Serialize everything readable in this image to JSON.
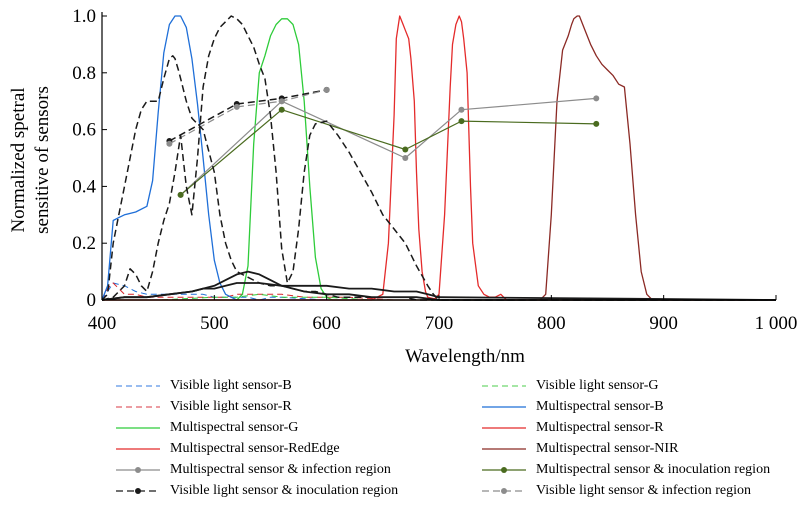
{
  "chart_data": {
    "type": "line",
    "title": "",
    "xlabel": "Wavelength/nm",
    "ylabel_lines": [
      "Normalized spetral",
      "sensitive of sensors"
    ],
    "xlim": [
      400,
      1000
    ],
    "ylim": [
      0,
      1.0
    ],
    "xticks": [
      400,
      500,
      600,
      700,
      800,
      900,
      1000
    ],
    "xtick_labels": [
      "400",
      "500",
      "600",
      "700",
      "800",
      "900",
      "1 000"
    ],
    "yticks": [
      0,
      0.2,
      0.4,
      0.6,
      0.8,
      1.0
    ],
    "ytick_labels": [
      "0",
      "0.2",
      "0.4",
      "0.6",
      "0.8",
      "1.0"
    ],
    "grid": false,
    "legend_position": "bottom",
    "series": [
      {
        "name": "Visible light sensor-B",
        "color": "#1f6fd8",
        "dash": "6,4",
        "width": 1,
        "marker": false,
        "x": [
          400,
          410,
          420,
          430,
          440,
          450,
          460,
          470,
          480,
          490,
          500,
          510,
          520,
          530,
          540,
          550,
          560,
          600,
          700,
          1000
        ],
        "y": [
          0,
          0.06,
          0.05,
          0.03,
          0.02,
          0.02,
          0.02,
          0.02,
          0.02,
          0.02,
          0.01,
          0.01,
          0.01,
          0.01,
          0.0,
          0.01,
          0.01,
          0.0,
          0.0,
          0.0
        ]
      },
      {
        "name": "Visible light sensor-R",
        "color": "#d8252b",
        "dash": "6,4",
        "width": 1,
        "marker": false,
        "x": [
          400,
          405,
          410,
          415,
          420,
          430,
          440,
          460,
          480,
          500,
          510,
          520,
          540,
          560,
          580,
          600,
          620,
          660,
          700,
          1000
        ],
        "y": [
          0,
          0.04,
          0.06,
          0.04,
          0.02,
          0.02,
          0.01,
          0.01,
          0.01,
          0.01,
          0.01,
          0.02,
          0.02,
          0.02,
          0.01,
          0.01,
          0.01,
          0.0,
          0.0,
          0.0
        ]
      },
      {
        "name": "Visible light sensor-G",
        "color": "#2ecc3a",
        "dash": "6,4",
        "width": 1,
        "marker": false,
        "x": [
          400,
          450,
          500,
          520,
          540,
          560,
          580,
          600,
          640,
          700,
          1000
        ],
        "y": [
          0,
          0.0,
          0.01,
          0.01,
          0.02,
          0.01,
          0.01,
          0.01,
          0.0,
          0.0,
          0.0
        ]
      },
      {
        "name": "Multispectral sensor-B",
        "color": "#1f6fd8",
        "dash": "",
        "width": 1.3,
        "marker": false,
        "x": [
          400,
          405,
          410,
          415,
          420,
          430,
          440,
          445,
          450,
          455,
          460,
          465,
          470,
          475,
          480,
          485,
          490,
          495,
          500,
          505,
          510,
          515,
          520,
          530,
          540,
          560,
          1000
        ],
        "y": [
          0,
          0.05,
          0.28,
          0.29,
          0.3,
          0.31,
          0.33,
          0.42,
          0.66,
          0.87,
          0.97,
          1.0,
          1.0,
          0.96,
          0.85,
          0.69,
          0.5,
          0.3,
          0.14,
          0.06,
          0.02,
          0.01,
          0.0,
          0.0,
          0.0,
          0.0,
          0.0
        ]
      },
      {
        "name": "Multispectral sensor-G",
        "color": "#2ecc3a",
        "dash": "",
        "width": 1.3,
        "marker": false,
        "x": [
          400,
          520,
          525,
          530,
          535,
          540,
          545,
          550,
          555,
          560,
          565,
          570,
          575,
          580,
          585,
          590,
          595,
          600,
          605,
          1000
        ],
        "y": [
          0,
          0,
          0.02,
          0.12,
          0.55,
          0.8,
          0.86,
          0.93,
          0.97,
          0.99,
          0.99,
          0.97,
          0.9,
          0.7,
          0.4,
          0.15,
          0.04,
          0.01,
          0.0,
          0.0
        ]
      },
      {
        "name": "Multispectral sensor-R",
        "color": "#e42b2b",
        "dash": "",
        "width": 1.3,
        "marker": false,
        "x": [
          400,
          695,
          700,
          705,
          710,
          712,
          715,
          718,
          720,
          722,
          725,
          728,
          730,
          735,
          740,
          745,
          750,
          755,
          760,
          780,
          1000
        ],
        "y": [
          0,
          0,
          0.02,
          0.3,
          0.75,
          0.9,
          0.97,
          1.0,
          0.98,
          0.92,
          0.8,
          0.4,
          0.2,
          0.05,
          0.02,
          0.01,
          0.01,
          0.02,
          0.0,
          0.0,
          0.0
        ]
      },
      {
        "name": "Multispectral sensor-RedEdge",
        "color": "#e42b2b",
        "dash": "",
        "width": 1.3,
        "marker": false,
        "x": [
          400,
          640,
          650,
          655,
          660,
          662,
          665,
          668,
          670,
          673,
          675,
          678,
          680,
          682,
          685,
          688,
          690,
          700,
          1000
        ],
        "y": [
          0,
          0,
          0.02,
          0.2,
          0.65,
          0.92,
          1.0,
          0.97,
          0.95,
          0.92,
          0.85,
          0.7,
          0.45,
          0.25,
          0.1,
          0.03,
          0.01,
          0.0,
          0.0
        ]
      },
      {
        "name": "Multispectral sensor-NIR",
        "color": "#8b2a25",
        "dash": "",
        "width": 1.3,
        "marker": false,
        "x": [
          400,
          790,
          795,
          800,
          805,
          810,
          815,
          818,
          820,
          823,
          825,
          830,
          835,
          840,
          845,
          850,
          855,
          860,
          865,
          870,
          875,
          880,
          885,
          890,
          900,
          1000
        ],
        "y": [
          0,
          0,
          0.02,
          0.3,
          0.7,
          0.88,
          0.93,
          0.97,
          0.99,
          1.0,
          1.0,
          0.95,
          0.9,
          0.86,
          0.83,
          0.81,
          0.79,
          0.76,
          0.75,
          0.55,
          0.3,
          0.1,
          0.02,
          0.0,
          0.0,
          0.0
        ]
      },
      {
        "name": "Multispectral sensor & infection region",
        "color": "#8c8c8c",
        "dash": "",
        "width": 1.2,
        "marker": true,
        "x": [
          470,
          560,
          670,
          720,
          840
        ],
        "y": [
          0.37,
          0.7,
          0.5,
          0.67,
          0.71
        ]
      },
      {
        "name": "Multispectral sensor & inoculation region",
        "color": "#4a6b1f",
        "dash": "",
        "width": 1.2,
        "marker": true,
        "x": [
          470,
          560,
          670,
          720,
          840
        ],
        "y": [
          0.37,
          0.67,
          0.53,
          0.63,
          0.62
        ]
      },
      {
        "name": "Visible light sensor & inoculation region",
        "color": "#1a1a1a",
        "dash": "7,4",
        "width": 1.5,
        "marker": true,
        "x": [
          460,
          520,
          560,
          600
        ],
        "y": [
          0.56,
          0.69,
          0.71,
          0.74
        ]
      },
      {
        "name": "Visible light sensor & infection region",
        "color": "#8c8c8c",
        "dash": "7,4",
        "width": 1.2,
        "marker": true,
        "x": [
          460,
          520,
          560,
          600
        ],
        "y": [
          0.55,
          0.68,
          0.7,
          0.74
        ]
      },
      {
        "name": "",
        "color": "#1a1a1a",
        "dash": "7,4",
        "width": 1.5,
        "marker": false,
        "x": [
          400,
          405,
          410,
          415,
          420,
          425,
          430,
          435,
          440,
          445,
          450,
          455,
          460,
          463,
          465,
          468,
          470,
          475,
          480,
          485,
          490,
          500,
          505,
          510,
          515,
          520,
          530,
          540,
          550,
          560,
          570,
          580,
          590,
          600,
          610,
          620,
          630,
          640,
          650,
          660,
          670,
          680,
          690,
          700,
          1000
        ],
        "y": [
          0,
          0.02,
          0.2,
          0.3,
          0.4,
          0.5,
          0.6,
          0.67,
          0.7,
          0.7,
          0.7,
          0.78,
          0.85,
          0.86,
          0.85,
          0.81,
          0.78,
          0.7,
          0.64,
          0.62,
          0.6,
          0.45,
          0.3,
          0.2,
          0.14,
          0.1,
          0.08,
          0.06,
          0.05,
          0.05,
          0.04,
          0.03,
          0.03,
          0.02,
          0.01,
          0.01,
          0.01,
          0.01,
          0.01,
          0.01,
          0.01,
          0.0,
          0.0,
          0.0,
          0.0
        ]
      },
      {
        "name": "",
        "color": "#1a1a1a",
        "dash": "7,4",
        "width": 1.5,
        "marker": false,
        "x": [
          400,
          410,
          420,
          425,
          430,
          435,
          440,
          445,
          450,
          455,
          460,
          465,
          470,
          475,
          480,
          485,
          490,
          495,
          500,
          505,
          510,
          515,
          520,
          525,
          530,
          535,
          540,
          545,
          550,
          555,
          560,
          565,
          570,
          575,
          580,
          585,
          590,
          600,
          610,
          620,
          630,
          640,
          650,
          660,
          670,
          680,
          690,
          695,
          700,
          1000
        ],
        "y": [
          0,
          0.01,
          0.05,
          0.11,
          0.09,
          0.05,
          0.03,
          0.1,
          0.2,
          0.28,
          0.34,
          0.45,
          0.58,
          0.4,
          0.3,
          0.5,
          0.75,
          0.86,
          0.92,
          0.96,
          0.98,
          1.0,
          0.99,
          0.97,
          0.93,
          0.89,
          0.83,
          0.78,
          0.65,
          0.45,
          0.18,
          0.06,
          0.1,
          0.25,
          0.45,
          0.58,
          0.62,
          0.63,
          0.58,
          0.52,
          0.45,
          0.38,
          0.3,
          0.25,
          0.2,
          0.12,
          0.05,
          0.02,
          0.0,
          0.0
        ]
      },
      {
        "name": "",
        "color": "#1a1a1a",
        "dash": "",
        "width": 1.8,
        "marker": false,
        "x": [
          400,
          420,
          440,
          460,
          480,
          500,
          510,
          520,
          530,
          540,
          550,
          560,
          580,
          600,
          620,
          640,
          660,
          680,
          700,
          720,
          1000
        ],
        "y": [
          0,
          0.01,
          0.01,
          0.02,
          0.03,
          0.05,
          0.07,
          0.09,
          0.1,
          0.09,
          0.07,
          0.05,
          0.03,
          0.02,
          0.02,
          0.01,
          0.01,
          0.01,
          0.0,
          0.0,
          0.0
        ]
      },
      {
        "name": "",
        "color": "#1a1a1a",
        "dash": "",
        "width": 1.8,
        "marker": false,
        "x": [
          400,
          420,
          440,
          460,
          480,
          490,
          500,
          510,
          520,
          530,
          540,
          560,
          580,
          600,
          620,
          640,
          660,
          680,
          690,
          700,
          1000
        ],
        "y": [
          0,
          0.01,
          0.01,
          0.02,
          0.03,
          0.04,
          0.04,
          0.05,
          0.06,
          0.06,
          0.06,
          0.05,
          0.05,
          0.05,
          0.04,
          0.04,
          0.03,
          0.03,
          0.02,
          0.01,
          0.0
        ]
      }
    ]
  },
  "legend": [
    {
      "label": "Visible light sensor-B",
      "color": "#5a93e6",
      "dash": "6,4",
      "marker": false
    },
    {
      "label": "Visible light sensor-G",
      "color": "#6fd66f",
      "dash": "6,4",
      "marker": false
    },
    {
      "label": "Visible light sensor-R",
      "color": "#e0606a",
      "dash": "6,4",
      "marker": false
    },
    {
      "label": "Multispectral sensor-B",
      "color": "#1f6fd8",
      "dash": "",
      "marker": false
    },
    {
      "label": "Multispectral sensor-G",
      "color": "#2ecc3a",
      "dash": "",
      "marker": false
    },
    {
      "label": "Multispectral sensor-R",
      "color": "#e42b2b",
      "dash": "",
      "marker": false
    },
    {
      "label": "Multispectral sensor-RedEdge",
      "color": "#e42b2b",
      "dash": "",
      "marker": false
    },
    {
      "label": "Multispectral sensor-NIR",
      "color": "#8b2a25",
      "dash": "",
      "marker": false
    },
    {
      "label": "Multispectral sensor & infection region",
      "color": "#8c8c8c",
      "dash": "",
      "marker": true
    },
    {
      "label": "Multispectral sensor & inoculation region",
      "color": "#4a6b1f",
      "dash": "",
      "marker": true
    },
    {
      "label": "Visible light sensor & inoculation region",
      "color": "#1a1a1a",
      "dash": "7,4",
      "marker": true
    },
    {
      "label": "Visible light sensor & infection region",
      "color": "#8c8c8c",
      "dash": "7,4",
      "marker": true
    }
  ]
}
